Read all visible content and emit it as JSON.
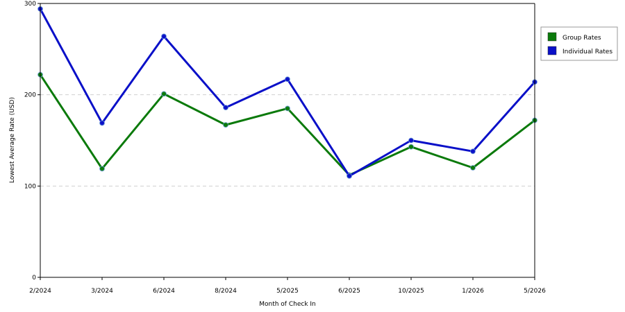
{
  "chart_data": {
    "type": "line",
    "title": "",
    "xlabel": "Month of Check In",
    "ylabel": "Lowest Average Rate (USD)",
    "categories": [
      "2/2024",
      "3/2024",
      "6/2024",
      "8/2024",
      "5/2025",
      "6/2025",
      "10/2025",
      "1/2026",
      "5/2026"
    ],
    "ylim": [
      0,
      300
    ],
    "yticks": [
      0,
      100,
      200,
      300
    ],
    "grid": true,
    "legend_position": "top-right",
    "series": [
      {
        "name": "Group Rates",
        "color": "#0b7a0b",
        "values": [
          222,
          119,
          201,
          167,
          185,
          112,
          143,
          120,
          172
        ]
      },
      {
        "name": "Individual Rates",
        "color": "#0a10c8",
        "values": [
          294,
          169,
          264,
          186,
          217,
          111,
          150,
          138,
          214
        ]
      }
    ]
  }
}
